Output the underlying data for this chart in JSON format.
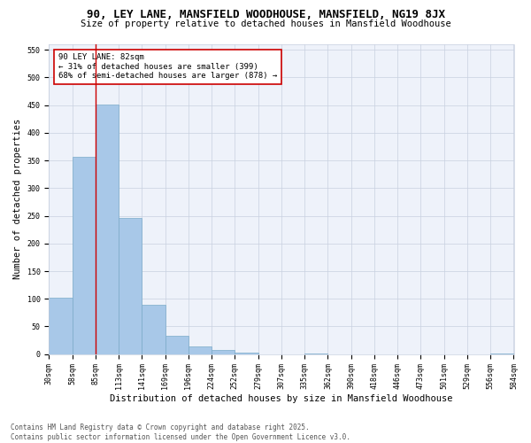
{
  "title": "90, LEY LANE, MANSFIELD WOODHOUSE, MANSFIELD, NG19 8JX",
  "subtitle": "Size of property relative to detached houses in Mansfield Woodhouse",
  "xlabel": "Distribution of detached houses by size in Mansfield Woodhouse",
  "ylabel": "Number of detached properties",
  "bar_values": [
    102,
    357,
    451,
    246,
    90,
    33,
    14,
    7,
    2,
    0,
    0,
    1,
    0,
    0,
    0,
    0,
    0,
    0,
    0,
    1
  ],
  "bar_labels": [
    "30sqm",
    "58sqm",
    "85sqm",
    "113sqm",
    "141sqm",
    "169sqm",
    "196sqm",
    "224sqm",
    "252sqm",
    "279sqm",
    "307sqm",
    "335sqm",
    "362sqm",
    "390sqm",
    "418sqm",
    "446sqm",
    "473sqm",
    "501sqm",
    "529sqm",
    "556sqm",
    "584sqm"
  ],
  "bar_color": "#a8c8e8",
  "bar_edge_color": "#7aaac8",
  "vline_color": "#cc0000",
  "vline_x_index": 2,
  "annotation_text": "90 LEY LANE: 82sqm\n← 31% of detached houses are smaller (399)\n68% of semi-detached houses are larger (878) →",
  "ylim": [
    0,
    560
  ],
  "yticks": [
    0,
    50,
    100,
    150,
    200,
    250,
    300,
    350,
    400,
    450,
    500,
    550
  ],
  "bg_color": "#eef2fa",
  "grid_color": "#c8d0e0",
  "footer_text": "Contains HM Land Registry data © Crown copyright and database right 2025.\nContains public sector information licensed under the Open Government Licence v3.0.",
  "title_fontsize": 9,
  "subtitle_fontsize": 7.5,
  "xlabel_fontsize": 7.5,
  "ylabel_fontsize": 7.5,
  "tick_fontsize": 6,
  "annotation_fontsize": 6.5,
  "footer_fontsize": 5.5
}
